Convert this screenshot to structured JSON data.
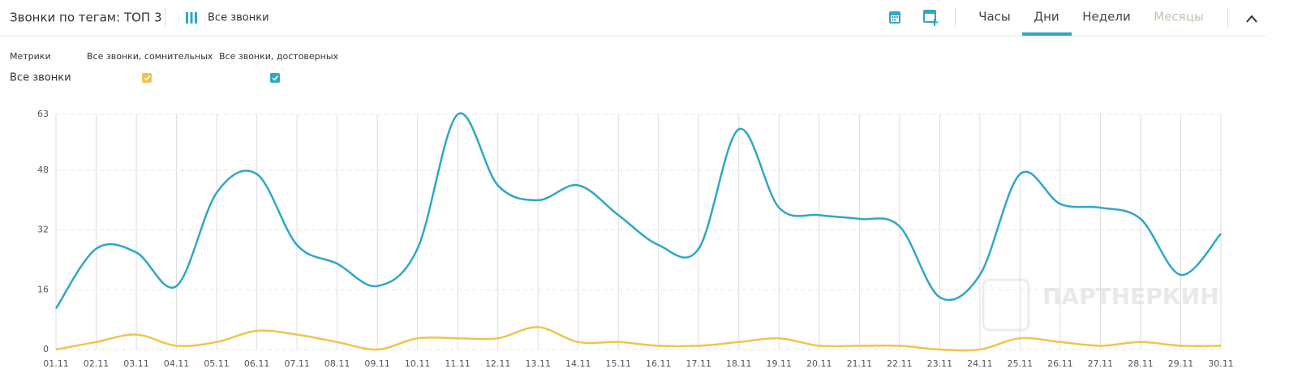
{
  "header": {
    "title": "Звонки по тегам: ТОП 3",
    "filter": "Все звонки",
    "tabs": [
      "Часы",
      "Дни",
      "Недели",
      "Месяцы"
    ],
    "active_tab": 1
  },
  "metrics": {
    "label": "Метрики",
    "row": "Все звонки"
  },
  "watermark": "ПАРТНЕРКИН",
  "chart_data": {
    "type": "line",
    "categories": [
      "01.11",
      "02.11",
      "03.11",
      "04.11",
      "05.11",
      "06.11",
      "07.11",
      "08.11",
      "09.11",
      "10.11",
      "11.11",
      "12.11",
      "13.11",
      "14.11",
      "15.11",
      "16.11",
      "17.11",
      "18.11",
      "19.11",
      "20.11",
      "21.11",
      "22.11",
      "23.11",
      "24.11",
      "25.11",
      "26.11",
      "27.11",
      "28.11",
      "29.11",
      "30.11"
    ],
    "series": [
      {
        "name": "Все звонки, сомнительных",
        "color": "#f0c44c",
        "values": [
          0,
          2,
          4,
          1,
          2,
          5,
          4,
          2,
          0,
          3,
          3,
          3,
          6,
          2,
          2,
          1,
          1,
          2,
          3,
          1,
          1,
          1,
          0,
          0,
          3,
          2,
          1,
          2,
          1,
          1
        ]
      },
      {
        "name": "Все звонки, достоверных",
        "color": "#2ea8c4",
        "values": [
          11,
          27,
          26,
          17,
          42,
          47,
          28,
          23,
          17,
          27,
          63,
          44,
          40,
          44,
          36,
          28,
          27,
          59,
          38,
          36,
          35,
          33,
          14,
          20,
          47,
          39,
          38,
          35,
          20,
          31
        ]
      }
    ],
    "ylim": [
      0,
      63
    ],
    "yticks": [
      0,
      16,
      32,
      48,
      63
    ],
    "grid": true,
    "smooth": true
  }
}
